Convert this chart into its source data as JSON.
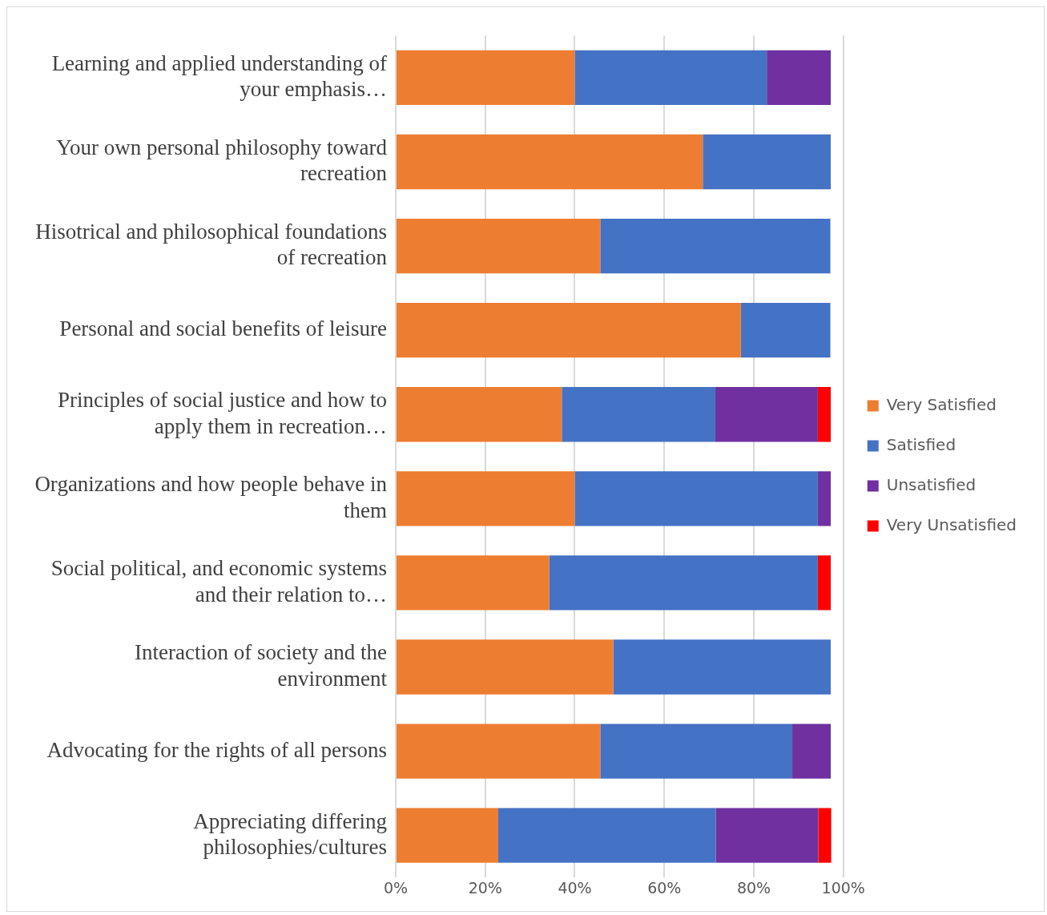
{
  "chart_data": {
    "type": "bar",
    "orientation": "horizontal",
    "stacked": true,
    "categories": [
      "Learning and applied understanding of your emphasis…",
      "Your own personal philosophy toward recreation",
      "Hisotrical and philosophical foundations of recreation",
      "Personal and social benefits of leisure",
      "Principles of social justice and how to apply them in recreation…",
      "Organizations and how people behave in them",
      "Social political, and economic systems and their relation to…",
      "Interaction of society and the environment",
      "Advocating for the rights of all persons",
      "Appreciating differing philosophies/cultures"
    ],
    "series": [
      {
        "name": "Very Satisfied",
        "color": "#ed7d31",
        "values": [
          40,
          68.6,
          45.7,
          77.1,
          37.1,
          40,
          34.3,
          48.6,
          45.7,
          22.9
        ]
      },
      {
        "name": "Satisfied",
        "color": "#4472c4",
        "values": [
          42.9,
          28.6,
          51.4,
          20,
          34.3,
          54.3,
          60,
          48.6,
          42.9,
          48.6
        ]
      },
      {
        "name": "Unsatisfied",
        "color": "#7030a0",
        "values": [
          14.3,
          null,
          null,
          null,
          22.9,
          2.9,
          null,
          null,
          8.6,
          22.9
        ]
      },
      {
        "name": "Very Unsatisfied",
        "color": "#ff0000",
        "values": [
          null,
          null,
          null,
          null,
          2.9,
          null,
          2.9,
          null,
          null,
          2.9
        ]
      }
    ],
    "xlim": [
      0,
      100
    ],
    "xticks": [
      {
        "value": 0,
        "label": "0%"
      },
      {
        "value": 20,
        "label": "20%"
      },
      {
        "value": 40,
        "label": "40%"
      },
      {
        "value": 60,
        "label": "60%"
      },
      {
        "value": 80,
        "label": "80%"
      },
      {
        "value": 100,
        "label": "100%"
      }
    ],
    "grid": "x",
    "legend": "right"
  }
}
